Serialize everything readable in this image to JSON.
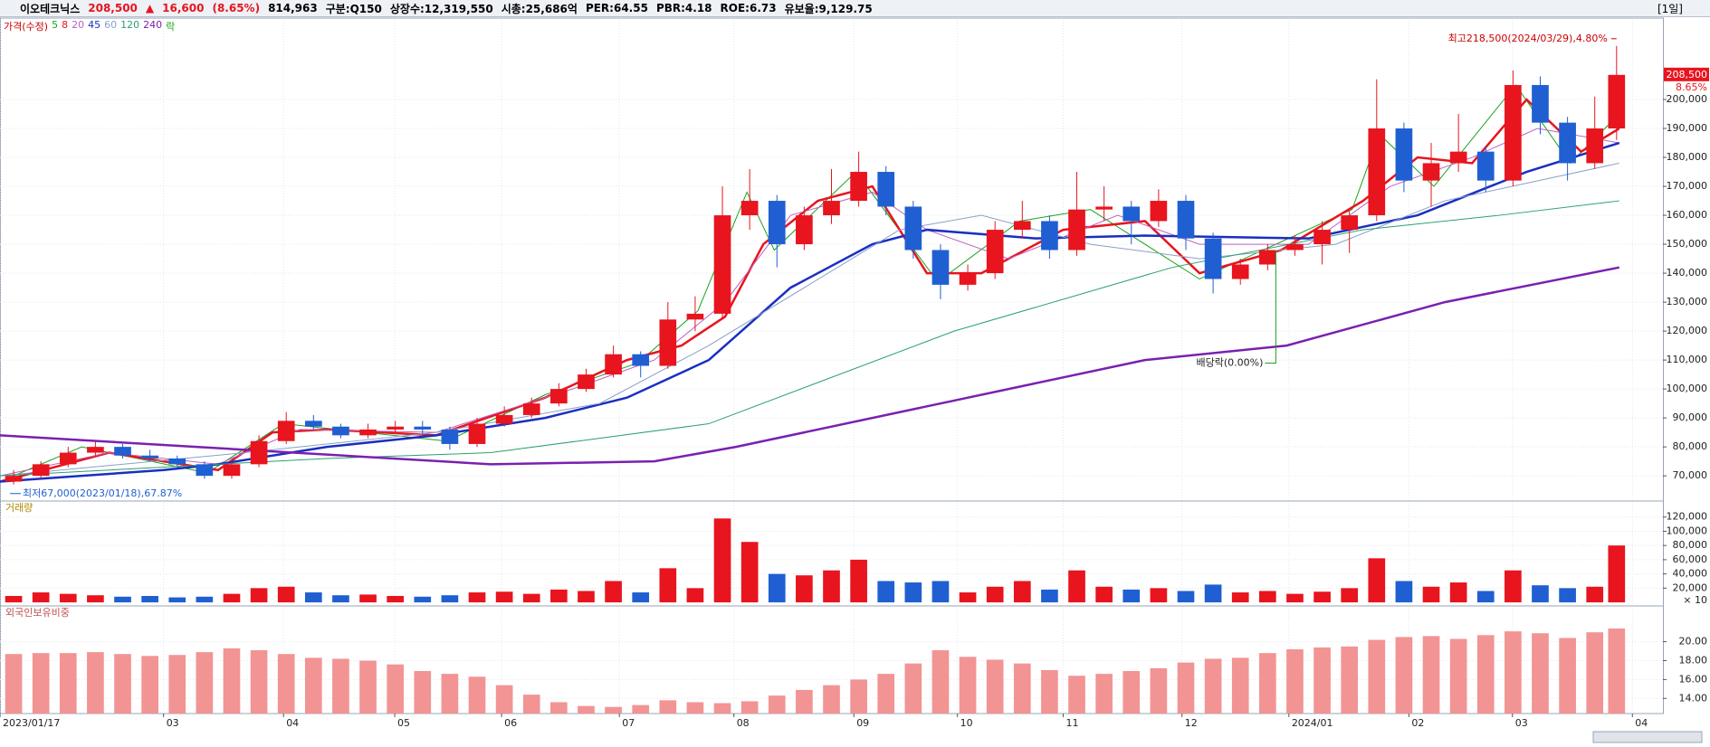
{
  "header": {
    "name": "이오테크닉스",
    "price": "208,500",
    "arrow": "▲",
    "change": "16,600",
    "change_pct": "(8.65%)",
    "volume": "814,963",
    "market": "구분:Q150",
    "shares": "상장수:12,319,550",
    "cap": "시총:25,686억",
    "per": "PER:64.55",
    "pbr": "PBR:4.18",
    "roe": "ROE:6.73",
    "reserve": "유보율:9,129.75",
    "period": "[1일]"
  },
  "chart_data": [
    {
      "type": "candlestick",
      "title": "가격(수정)",
      "up_color": "#e8141e",
      "down_color": "#1f5fd2",
      "x": [
        2.5,
        7.5,
        12.5,
        17.5,
        22.5,
        27.5,
        32.5,
        37.5,
        42.5,
        47.5,
        52.5,
        57.5,
        62.5,
        67.5,
        72.5,
        77.5,
        82.5,
        87.5,
        92.5,
        97.5,
        102.5,
        107.5,
        112.5,
        117.5,
        122.5,
        127.5,
        132.5,
        137.5,
        142.5,
        147.5,
        152.5,
        157.5,
        162.5,
        167.5,
        172.5,
        177.5,
        182.5,
        187.5,
        192.5,
        197.5,
        202.5,
        207.5,
        212.5,
        217.5,
        222.5,
        227.5,
        232.5,
        237.5,
        242.5,
        247.5,
        252.5,
        257.5,
        262.5,
        267.5,
        272.5,
        277.5,
        282.5,
        287.5,
        292.5,
        296.5
      ],
      "ohlc": [
        [
          68000,
          72000,
          67000,
          70000
        ],
        [
          70000,
          75000,
          69000,
          74000
        ],
        [
          74000,
          80000,
          73000,
          78000
        ],
        [
          78000,
          82000,
          77000,
          80000
        ],
        [
          80000,
          81000,
          76000,
          77000
        ],
        [
          77000,
          79000,
          75000,
          76000
        ],
        [
          76000,
          77000,
          73000,
          74000
        ],
        [
          74000,
          75000,
          69000,
          70000
        ],
        [
          70000,
          75000,
          69000,
          74000
        ],
        [
          74000,
          84000,
          73000,
          82000
        ],
        [
          82000,
          92000,
          81000,
          89000
        ],
        [
          89000,
          91000,
          86000,
          87000
        ],
        [
          87000,
          88000,
          83000,
          84000
        ],
        [
          84000,
          88000,
          83000,
          86000
        ],
        [
          86000,
          89000,
          85000,
          87000
        ],
        [
          87000,
          89000,
          84000,
          86000
        ],
        [
          86000,
          87000,
          79000,
          81000
        ],
        [
          81000,
          90000,
          80000,
          88000
        ],
        [
          88000,
          94000,
          87000,
          91000
        ],
        [
          91000,
          97000,
          90000,
          95000
        ],
        [
          95000,
          102000,
          94000,
          100000
        ],
        [
          100000,
          107000,
          99000,
          105000
        ],
        [
          105000,
          115000,
          104000,
          112000
        ],
        [
          112000,
          113000,
          104000,
          108000
        ],
        [
          108000,
          130000,
          107000,
          124000
        ],
        [
          124000,
          132000,
          120000,
          126000
        ],
        [
          126000,
          170000,
          124000,
          160000
        ],
        [
          160000,
          176000,
          155000,
          165000
        ],
        [
          165000,
          167000,
          142000,
          150000
        ],
        [
          150000,
          163000,
          148000,
          160000
        ],
        [
          160000,
          176000,
          157000,
          165000
        ],
        [
          165000,
          182000,
          163000,
          175000
        ],
        [
          175000,
          177000,
          160000,
          163000
        ],
        [
          163000,
          165000,
          145000,
          148000
        ],
        [
          148000,
          150000,
          131000,
          136000
        ],
        [
          136000,
          143000,
          134000,
          140000
        ],
        [
          140000,
          158000,
          138000,
          155000
        ],
        [
          155000,
          165000,
          152000,
          158000
        ],
        [
          158000,
          160000,
          145000,
          148000
        ],
        [
          148000,
          175000,
          146000,
          162000
        ],
        [
          162000,
          170000,
          158000,
          163000
        ],
        [
          163000,
          165000,
          150000,
          158000
        ],
        [
          158000,
          169000,
          156000,
          165000
        ],
        [
          165000,
          167000,
          148000,
          152000
        ],
        [
          152000,
          154000,
          133000,
          138000
        ],
        [
          138000,
          145000,
          136000,
          143000
        ],
        [
          143000,
          150000,
          141000,
          148000
        ],
        [
          148000,
          153000,
          146000,
          150000
        ],
        [
          150000,
          158000,
          143000,
          155000
        ],
        [
          155000,
          162000,
          147000,
          160000
        ],
        [
          160000,
          207000,
          158000,
          190000
        ],
        [
          190000,
          192000,
          168000,
          172000
        ],
        [
          172000,
          185000,
          163000,
          178000
        ],
        [
          178000,
          195000,
          175000,
          182000
        ],
        [
          182000,
          184000,
          168000,
          172000
        ],
        [
          172000,
          210000,
          170000,
          205000
        ],
        [
          205000,
          208000,
          188000,
          192000
        ],
        [
          192000,
          194000,
          172000,
          178000
        ],
        [
          178000,
          201000,
          176000,
          190000
        ],
        [
          190000,
          218500,
          186000,
          208500
        ]
      ],
      "series": [
        {
          "name": "5",
          "color": "#1aa31a",
          "width": 1,
          "x": [
            0,
            15,
            38,
            52,
            82,
            100,
            117,
            128,
            137,
            142,
            157,
            172,
            187,
            200,
            220,
            248,
            253,
            263,
            278,
            288,
            297
          ],
          "values": [
            68000,
            80000,
            71000,
            88000,
            82000,
            98000,
            109000,
            127000,
            168000,
            148000,
            175000,
            137000,
            158000,
            162000,
            138000,
            162000,
            188000,
            170000,
            205000,
            178000,
            195000
          ]
        },
        {
          "name": "8",
          "color": "#e8141e",
          "width": 2.5,
          "x": [
            0,
            20,
            40,
            50,
            60,
            80,
            100,
            115,
            125,
            133,
            140,
            150,
            160,
            170,
            180,
            195,
            210,
            220,
            235,
            250,
            260,
            270,
            280,
            290,
            297
          ],
          "values": [
            68000,
            78000,
            72000,
            85000,
            86000,
            84000,
            97000,
            110000,
            115000,
            125000,
            150000,
            165000,
            170000,
            140000,
            140000,
            155000,
            158000,
            140000,
            148000,
            165000,
            180000,
            178000,
            200000,
            182000,
            190000
          ]
        },
        {
          "name": "20",
          "color": "#c060c0",
          "width": 1,
          "x": [
            0,
            20,
            40,
            55,
            80,
            105,
            120,
            133,
            145,
            160,
            170,
            185,
            205,
            220,
            240,
            255,
            270,
            282,
            297
          ],
          "values": [
            70000,
            78000,
            74000,
            86000,
            85000,
            100000,
            110000,
            130000,
            160000,
            168000,
            155000,
            145000,
            160000,
            150000,
            150000,
            170000,
            180000,
            190000,
            185000
          ]
        },
        {
          "name": "45",
          "color": "#1a2fc0",
          "width": 2.5,
          "x": [
            0,
            30,
            40,
            60,
            80,
            100,
            115,
            130,
            145,
            160,
            170,
            190,
            210,
            240,
            260,
            280,
            297
          ],
          "values": [
            68000,
            72000,
            74000,
            80000,
            84000,
            90000,
            97000,
            110000,
            135000,
            150000,
            155000,
            152000,
            153000,
            152000,
            160000,
            175000,
            185000
          ]
        },
        {
          "name": "60",
          "color": "#8aa0c8",
          "width": 1,
          "x": [
            0,
            45,
            80,
            110,
            130,
            165,
            180,
            200,
            220,
            245,
            265,
            297
          ],
          "values": [
            70000,
            78000,
            85000,
            95000,
            115000,
            155000,
            160000,
            150000,
            145000,
            150000,
            165000,
            178000
          ]
        },
        {
          "name": "120",
          "color": "#2aa070",
          "width": 1,
          "x": [
            0,
            60,
            90,
            130,
            175,
            215,
            250,
            275,
            297
          ],
          "values": [
            70000,
            76000,
            78000,
            88000,
            120000,
            142000,
            155000,
            160000,
            165000
          ]
        },
        {
          "name": "240",
          "color": "#7a20b0",
          "width": 2.5,
          "x": [
            0,
            90,
            120,
            135,
            175,
            210,
            236,
            265,
            297
          ],
          "values": [
            84000,
            74000,
            75000,
            80000,
            96000,
            110000,
            115000,
            130000,
            142000
          ]
        }
      ],
      "dividend_marker": "락",
      "annotations": [
        {
          "text": "최고218,500(2024/03/29),4.80%",
          "x": 296.5,
          "y": 218500
        },
        {
          "text": "최저67,000(2023/01/18),67.87%",
          "x": 0.5,
          "y": 67000
        },
        {
          "text": "배당락(0.00%)",
          "x": 234,
          "y": 148000
        }
      ],
      "last_tag": {
        "value": 208500,
        "label": "208,500",
        "change": "8.65%"
      },
      "xlim": [
        0,
        305
      ],
      "ylim": [
        61300,
        227500
      ],
      "yticks": [
        {
          "value": 70000,
          "label": "70,000"
        },
        {
          "value": 80000,
          "label": "80,000"
        },
        {
          "value": 90000,
          "label": "90,000"
        },
        {
          "value": 100000,
          "label": "100,000"
        },
        {
          "value": 110000,
          "label": "110,000"
        },
        {
          "value": 120000,
          "label": "120,000"
        },
        {
          "value": 130000,
          "label": "130,000"
        },
        {
          "value": 140000,
          "label": "140,000"
        },
        {
          "value": 150000,
          "label": "150,000"
        },
        {
          "value": 160000,
          "label": "160,000"
        },
        {
          "value": 170000,
          "label": "170,000"
        },
        {
          "value": 180000,
          "label": "180,000"
        },
        {
          "value": 190000,
          "label": "190,000"
        },
        {
          "value": 200000,
          "label": "200,000"
        }
      ]
    },
    {
      "type": "bar",
      "title": "거래량",
      "unit": "× 10",
      "x": [
        2.5,
        7.5,
        12.5,
        17.5,
        22.5,
        27.5,
        32.5,
        37.5,
        42.5,
        47.5,
        52.5,
        57.5,
        62.5,
        67.5,
        72.5,
        77.5,
        82.5,
        87.5,
        92.5,
        97.5,
        102.5,
        107.5,
        112.5,
        117.5,
        122.5,
        127.5,
        132.5,
        137.5,
        142.5,
        147.5,
        152.5,
        157.5,
        162.5,
        167.5,
        172.5,
        177.5,
        182.5,
        187.5,
        192.5,
        197.5,
        202.5,
        207.5,
        212.5,
        217.5,
        222.5,
        227.5,
        232.5,
        237.5,
        242.5,
        247.5,
        252.5,
        257.5,
        262.5,
        267.5,
        272.5,
        277.5,
        282.5,
        287.5,
        292.5,
        296.5
      ],
      "values": [
        9000,
        14000,
        12000,
        10000,
        8000,
        9000,
        7000,
        8000,
        12000,
        20000,
        22000,
        14000,
        10000,
        11000,
        9000,
        8000,
        10000,
        14000,
        15000,
        12000,
        18000,
        16000,
        30000,
        14000,
        48000,
        20000,
        118000,
        85000,
        40000,
        38000,
        45000,
        60000,
        30000,
        28000,
        30000,
        14000,
        22000,
        30000,
        18000,
        45000,
        22000,
        18000,
        20000,
        16000,
        25000,
        14000,
        16000,
        12000,
        15000,
        20000,
        62000,
        30000,
        22000,
        28000,
        16000,
        45000,
        24000,
        20000,
        22000,
        80000
      ],
      "xlim": [
        0,
        305
      ],
      "ylim": [
        -5000,
        140000
      ],
      "yticks": [
        {
          "value": 20000,
          "label": "20,000"
        },
        {
          "value": 40000,
          "label": "40,000"
        },
        {
          "value": 60000,
          "label": "60,000"
        },
        {
          "value": 80000,
          "label": "80,000"
        },
        {
          "value": 100000,
          "label": "100,000"
        },
        {
          "value": 120000,
          "label": "120,000"
        }
      ]
    },
    {
      "type": "bar",
      "title": "외국인보유비중",
      "color": "#f29494",
      "x": [
        2.5,
        7.5,
        12.5,
        17.5,
        22.5,
        27.5,
        32.5,
        37.5,
        42.5,
        47.5,
        52.5,
        57.5,
        62.5,
        67.5,
        72.5,
        77.5,
        82.5,
        87.5,
        92.5,
        97.5,
        102.5,
        107.5,
        112.5,
        117.5,
        122.5,
        127.5,
        132.5,
        137.5,
        142.5,
        147.5,
        152.5,
        157.5,
        162.5,
        167.5,
        172.5,
        177.5,
        182.5,
        187.5,
        192.5,
        197.5,
        202.5,
        207.5,
        212.5,
        217.5,
        222.5,
        227.5,
        232.5,
        237.5,
        242.5,
        247.5,
        252.5,
        257.5,
        262.5,
        267.5,
        272.5,
        277.5,
        282.5,
        287.5,
        292.5,
        296.5
      ],
      "values": [
        18.7,
        18.8,
        18.8,
        18.9,
        18.7,
        18.5,
        18.6,
        18.9,
        19.3,
        19.1,
        18.7,
        18.3,
        18.2,
        18.0,
        17.6,
        16.9,
        16.6,
        16.3,
        15.4,
        14.4,
        13.6,
        13.2,
        13.1,
        13.3,
        13.8,
        13.6,
        13.5,
        13.7,
        14.3,
        14.9,
        15.4,
        16.0,
        16.6,
        17.7,
        19.1,
        18.4,
        18.1,
        17.7,
        17.0,
        16.4,
        16.6,
        16.9,
        17.2,
        17.8,
        18.2,
        18.3,
        18.8,
        19.2,
        19.4,
        19.5,
        20.2,
        20.5,
        20.6,
        20.3,
        20.7,
        21.1,
        20.9,
        20.4,
        21.0,
        21.4
      ],
      "xlim": [
        0,
        305
      ],
      "ylim": [
        12.4,
        23.6
      ],
      "yticks": [
        {
          "value": 14,
          "label": "14.00"
        },
        {
          "value": 16,
          "label": "16.00"
        },
        {
          "value": 18,
          "label": "18.00"
        },
        {
          "value": 20,
          "label": "20.00"
        }
      ],
      "xticks": [
        {
          "value": 0,
          "label": "2023/01/17"
        },
        {
          "value": 30,
          "label": "03"
        },
        {
          "value": 52,
          "label": "04"
        },
        {
          "value": 72.4,
          "label": "05"
        },
        {
          "value": 92,
          "label": "06"
        },
        {
          "value": 113.6,
          "label": "07"
        },
        {
          "value": 134.6,
          "label": "08"
        },
        {
          "value": 156.6,
          "label": "09"
        },
        {
          "value": 175.6,
          "label": "10"
        },
        {
          "value": 195,
          "label": "11"
        },
        {
          "value": 216.8,
          "label": "12"
        },
        {
          "value": 236.4,
          "label": "2024/01"
        },
        {
          "value": 258.4,
          "label": "02"
        },
        {
          "value": 277.4,
          "label": "03"
        },
        {
          "value": 299.4,
          "label": "04"
        }
      ]
    }
  ]
}
